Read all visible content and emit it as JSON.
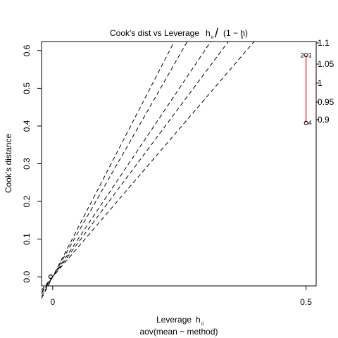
{
  "chart_data": {
    "type": "scatter",
    "title": {
      "main": "Cook's dist vs Leverage",
      "formula_numerator": "h",
      "formula_subscript": "ii",
      "formula_slash": "/",
      "formula_denominator_open": "(1 − h",
      "formula_denominator_close": ")"
    },
    "xlabel": "Leverage",
    "xlabel_symbol": "h",
    "xlabel_subscript": "ii",
    "sublabel": "aov(mean ~ method)",
    "ylabel": "Cook's distance",
    "xlim": [
      -0.022,
      0.52
    ],
    "ylim": [
      -0.024,
      0.624
    ],
    "x_ticks": [
      {
        "value": 0,
        "label": "0"
      },
      {
        "value": 0.5,
        "label": "0.5"
      }
    ],
    "y_ticks": [
      {
        "value": 0.0,
        "label": "0.0"
      },
      {
        "value": 0.1,
        "label": "0.1"
      },
      {
        "value": 0.2,
        "label": "0.2"
      },
      {
        "value": 0.3,
        "label": "0.3"
      },
      {
        "value": 0.4,
        "label": "0.4"
      },
      {
        "value": 0.5,
        "label": "0.5"
      },
      {
        "value": 0.6,
        "label": "0.6"
      }
    ],
    "right_ticks": [
      {
        "value": 1.1,
        "label": "1.1"
      },
      {
        "value": 1.05,
        "label": "1.05"
      },
      {
        "value": 1.0,
        "label": "1"
      },
      {
        "value": 0.95,
        "label": "0.95"
      },
      {
        "value": 0.9,
        "label": "0.9"
      }
    ],
    "contour_slopes": [
      2.6,
      2.35,
      2.0,
      1.8,
      1.57
    ],
    "points": [
      {
        "x": 0.5,
        "y": 0.588,
        "label": "2"
      },
      {
        "x": 0.5,
        "y": 0.588,
        "label": "1"
      },
      {
        "x": 0.5,
        "y": 0.408,
        "label": "4"
      }
    ],
    "origin_points": [
      {
        "x": 0.0,
        "y": 0.0
      },
      {
        "x": 0.0,
        "y": 0.001
      }
    ],
    "smoother": {
      "x": [
        0.5,
        0.5
      ],
      "y": [
        0.588,
        0.408
      ],
      "color": "#ff0000"
    },
    "grid": false
  }
}
